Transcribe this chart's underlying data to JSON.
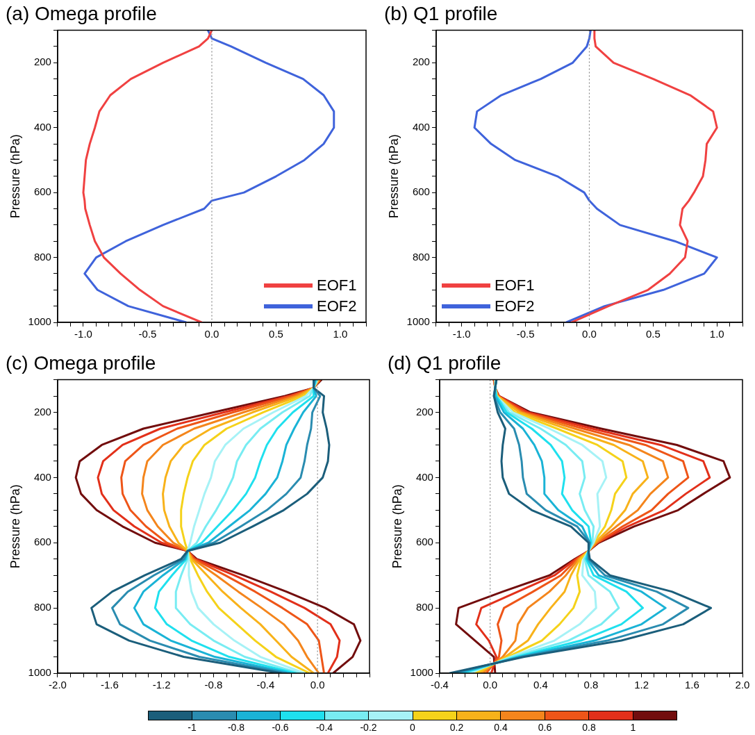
{
  "chart_data": [
    {
      "type": "line",
      "title": "(a) Omega profile",
      "ylabel": "Pressure (hPa)",
      "legend": "bottom right",
      "line_style": "solid",
      "marker": "none",
      "xlim": [
        -1.2,
        1.2
      ],
      "ylim": [
        1000,
        100
      ],
      "xticks": [
        {
          "value": -1.2,
          "label": null
        },
        {
          "value": -1.1,
          "label": null
        },
        {
          "value": -1,
          "label": "-1.0"
        },
        {
          "value": -0.9,
          "label": null
        },
        {
          "value": -0.8,
          "label": null
        },
        {
          "value": -0.7,
          "label": null
        },
        {
          "value": -0.6,
          "label": null
        },
        {
          "value": -0.5,
          "label": "-0.5"
        },
        {
          "value": -0.4,
          "label": null
        },
        {
          "value": -0.3,
          "label": null
        },
        {
          "value": -0.2,
          "label": null
        },
        {
          "value": -0.1,
          "label": null
        },
        {
          "value": 0,
          "label": "0.0"
        },
        {
          "value": 0.1,
          "label": null
        },
        {
          "value": 0.2,
          "label": null
        },
        {
          "value": 0.3,
          "label": null
        },
        {
          "value": 0.4,
          "label": null
        },
        {
          "value": 0.5,
          "label": "0.5"
        },
        {
          "value": 0.6,
          "label": null
        },
        {
          "value": 0.7,
          "label": null
        },
        {
          "value": 0.8,
          "label": null
        },
        {
          "value": 0.9,
          "label": null
        },
        {
          "value": 1,
          "label": "1.0"
        },
        {
          "value": 1.1,
          "label": null
        },
        {
          "value": 1.2,
          "label": null
        }
      ],
      "yticks": [
        {
          "value": 100,
          "label": null
        },
        {
          "value": 150,
          "label": null
        },
        200,
        {
          "value": 250,
          "label": null
        },
        {
          "value": 300,
          "label": null
        },
        {
          "value": 350,
          "label": null
        },
        400,
        {
          "value": 450,
          "label": null
        },
        {
          "value": 500,
          "label": null
        },
        {
          "value": 550,
          "label": null
        },
        600,
        {
          "value": 650,
          "label": null
        },
        {
          "value": 700,
          "label": null
        },
        {
          "value": 750,
          "label": null
        },
        800,
        {
          "value": 850,
          "label": null
        },
        {
          "value": 900,
          "label": null
        },
        {
          "value": 950,
          "label": null
        },
        1000
      ],
      "ref_lines": [
        {
          "axis": "x",
          "value": 0,
          "color": "#888888",
          "line_style": "dotted"
        }
      ],
      "series": [
        {
          "name": "EOF1",
          "color": "#f04141",
          "x": [
            0.0,
            -0.03,
            -0.1,
            -0.38,
            -0.63,
            -0.79,
            -0.875,
            -0.91,
            -0.95,
            -0.98,
            -0.99,
            -1.0,
            -0.99,
            -0.985,
            -0.95,
            -0.91,
            -0.84,
            -0.71,
            -0.56,
            -0.38,
            -0.08
          ],
          "values": [
            100,
            125,
            150,
            200,
            250,
            300,
            350,
            400,
            450,
            500,
            550,
            600,
            625,
            650,
            700,
            750,
            800,
            850,
            900,
            950,
            1000
          ]
        },
        {
          "name": "EOF2",
          "color": "#3f63db",
          "x": [
            -0.03,
            0.0,
            0.15,
            0.42,
            0.71,
            0.87,
            0.95,
            0.95,
            0.87,
            0.72,
            0.5,
            0.25,
            0.0,
            -0.06,
            -0.38,
            -0.67,
            -0.9,
            -0.99,
            -0.89,
            -0.65,
            -0.2
          ],
          "values": [
            100,
            125,
            150,
            200,
            250,
            300,
            350,
            400,
            450,
            500,
            550,
            600,
            625,
            650,
            700,
            750,
            800,
            850,
            900,
            950,
            1000
          ]
        }
      ]
    },
    {
      "type": "line",
      "title": "(b) Q1 profile",
      "ylabel": "Pressure (hPa)",
      "legend": "bottom left",
      "line_style": "solid",
      "marker": "none",
      "xlim": [
        -1.2,
        1.2
      ],
      "ylim": [
        1000,
        100
      ],
      "xticks": [
        {
          "value": -1.2,
          "label": null
        },
        {
          "value": -1.1,
          "label": null
        },
        {
          "value": -1,
          "label": "-1.0"
        },
        {
          "value": -0.9,
          "label": null
        },
        {
          "value": -0.8,
          "label": null
        },
        {
          "value": -0.7,
          "label": null
        },
        {
          "value": -0.6,
          "label": null
        },
        {
          "value": -0.5,
          "label": "-0.5"
        },
        {
          "value": -0.4,
          "label": null
        },
        {
          "value": -0.3,
          "label": null
        },
        {
          "value": -0.2,
          "label": null
        },
        {
          "value": -0.1,
          "label": null
        },
        {
          "value": 0,
          "label": "0.0"
        },
        {
          "value": 0.1,
          "label": null
        },
        {
          "value": 0.2,
          "label": null
        },
        {
          "value": 0.3,
          "label": null
        },
        {
          "value": 0.4,
          "label": null
        },
        {
          "value": 0.5,
          "label": "0.5"
        },
        {
          "value": 0.6,
          "label": null
        },
        {
          "value": 0.7,
          "label": null
        },
        {
          "value": 0.8,
          "label": null
        },
        {
          "value": 0.9,
          "label": null
        },
        {
          "value": 1,
          "label": "1.0"
        },
        {
          "value": 1.1,
          "label": null
        },
        {
          "value": 1.2,
          "label": null
        }
      ],
      "yticks": [
        {
          "value": 100,
          "label": null
        },
        {
          "value": 150,
          "label": null
        },
        200,
        {
          "value": 250,
          "label": null
        },
        {
          "value": 300,
          "label": null
        },
        {
          "value": 350,
          "label": null
        },
        400,
        {
          "value": 450,
          "label": null
        },
        {
          "value": 500,
          "label": null
        },
        {
          "value": 550,
          "label": null
        },
        600,
        {
          "value": 650,
          "label": null
        },
        {
          "value": 700,
          "label": null
        },
        {
          "value": 750,
          "label": null
        },
        800,
        {
          "value": 850,
          "label": null
        },
        {
          "value": 900,
          "label": null
        },
        {
          "value": 950,
          "label": null
        },
        1000
      ],
      "ref_lines": [
        {
          "axis": "x",
          "value": 0,
          "color": "#888888",
          "line_style": "dotted"
        }
      ],
      "series": [
        {
          "name": "EOF1",
          "color": "#f04141",
          "x": [
            0.04,
            0.04,
            0.05,
            0.19,
            0.5,
            0.79,
            0.97,
            1.0,
            0.92,
            0.91,
            0.89,
            0.82,
            0.78,
            0.73,
            0.71,
            0.77,
            0.75,
            0.63,
            0.46,
            0.15,
            -0.14
          ],
          "values": [
            100,
            125,
            150,
            200,
            250,
            300,
            350,
            400,
            450,
            500,
            550,
            600,
            625,
            650,
            700,
            750,
            800,
            850,
            900,
            950,
            1000
          ]
        },
        {
          "name": "EOF2",
          "color": "#3f63db",
          "x": [
            0.01,
            0.0,
            -0.02,
            -0.13,
            -0.38,
            -0.69,
            -0.88,
            -0.9,
            -0.77,
            -0.58,
            -0.25,
            -0.04,
            0.0,
            0.06,
            0.24,
            0.67,
            1.0,
            0.9,
            0.58,
            0.12,
            -0.18
          ],
          "values": [
            100,
            125,
            150,
            200,
            250,
            300,
            350,
            400,
            450,
            500,
            550,
            600,
            625,
            650,
            700,
            750,
            800,
            850,
            900,
            950,
            1000
          ]
        }
      ]
    },
    {
      "type": "line",
      "title": "(c) Omega profile",
      "ylabel": "Pressure (hPa)",
      "line_style": "solid",
      "marker": "none",
      "xlim": [
        -2.0,
        0.4
      ],
      "ylim": [
        1000,
        100
      ],
      "xticks": [
        {
          "value": -2,
          "label": "-2.0"
        },
        {
          "value": -1.9,
          "label": null
        },
        {
          "value": -1.8,
          "label": null
        },
        {
          "value": -1.7,
          "label": null
        },
        {
          "value": -1.6,
          "label": "-1.6"
        },
        {
          "value": -1.5,
          "label": null
        },
        {
          "value": -1.4,
          "label": null
        },
        {
          "value": -1.3,
          "label": null
        },
        {
          "value": -1.2,
          "label": "-1.2"
        },
        {
          "value": -1.1,
          "label": null
        },
        {
          "value": -1,
          "label": null
        },
        {
          "value": -0.9,
          "label": null
        },
        {
          "value": -0.8,
          "label": "-0.8"
        },
        {
          "value": -0.7,
          "label": null
        },
        {
          "value": -0.6,
          "label": null
        },
        {
          "value": -0.5,
          "label": null
        },
        {
          "value": -0.4,
          "label": "-0.4"
        },
        {
          "value": -0.3,
          "label": null
        },
        {
          "value": -0.2,
          "label": null
        },
        {
          "value": -0.1,
          "label": null
        },
        {
          "value": 0,
          "label": "0.0"
        },
        {
          "value": 0.1,
          "label": null
        },
        {
          "value": 0.2,
          "label": null
        },
        {
          "value": 0.3,
          "label": null
        },
        {
          "value": 0.4,
          "label": null
        }
      ],
      "yticks": [
        {
          "value": 100,
          "label": null
        },
        {
          "value": 150,
          "label": null
        },
        200,
        {
          "value": 250,
          "label": null
        },
        {
          "value": 300,
          "label": null
        },
        {
          "value": 350,
          "label": null
        },
        400,
        {
          "value": 450,
          "label": null
        },
        {
          "value": 500,
          "label": null
        },
        {
          "value": 550,
          "label": null
        },
        600,
        {
          "value": 650,
          "label": null
        },
        {
          "value": 700,
          "label": null
        },
        {
          "value": 750,
          "label": null
        },
        800,
        {
          "value": 850,
          "label": null
        },
        {
          "value": 900,
          "label": null
        },
        {
          "value": 950,
          "label": null
        },
        1000
      ],
      "ref_lines": [
        {
          "axis": "x",
          "value": 0,
          "color": "#888888",
          "line_style": "dotted"
        }
      ],
      "colors": [
        "#1b5e7b",
        "#2a8cb0",
        "#1ab3d6",
        "#1fe0ee",
        "#78ecf2",
        "#a6f2f6",
        "#f5d21a",
        "#f8b21a",
        "#f4851c",
        "#ee5518",
        "#e2301a",
        "#720d0d"
      ],
      "series": [
        {
          "x": [
            -0.03,
            -0.03,
            0.05,
            0.04,
            0.07,
            0.09,
            0.08,
            0.04,
            -0.08,
            -0.26,
            -0.5,
            -0.75,
            -1.0,
            -1.05,
            -1.33,
            -1.58,
            -1.74,
            -1.7,
            -1.45,
            -1.03,
            -0.28
          ],
          "values": [
            100,
            125,
            150,
            200,
            250,
            300,
            350,
            400,
            450,
            500,
            550,
            600,
            625,
            650,
            700,
            750,
            800,
            850,
            900,
            950,
            1000
          ]
        },
        {
          "x": [
            -0.02,
            -0.03,
            0.02,
            -0.04,
            -0.05,
            -0.08,
            -0.1,
            -0.13,
            -0.24,
            -0.39,
            -0.59,
            -0.8,
            -1.0,
            -1.03,
            -1.26,
            -1.46,
            -1.58,
            -1.52,
            -1.29,
            -0.91,
            -0.24
          ],
          "values": [
            100,
            125,
            150,
            200,
            250,
            300,
            350,
            400,
            450,
            500,
            550,
            600,
            625,
            650,
            700,
            750,
            800,
            850,
            900,
            950,
            1000
          ]
        },
        {
          "x": [
            -0.02,
            -0.03,
            -0.01,
            -0.11,
            -0.18,
            -0.24,
            -0.27,
            -0.31,
            -0.4,
            -0.52,
            -0.68,
            -0.84,
            -1.0,
            -1.02,
            -1.19,
            -1.34,
            -1.41,
            -1.34,
            -1.13,
            -0.79,
            -0.21
          ],
          "values": [
            100,
            125,
            150,
            200,
            250,
            300,
            350,
            400,
            450,
            500,
            550,
            600,
            625,
            650,
            700,
            750,
            800,
            850,
            900,
            950,
            1000
          ]
        },
        {
          "x": [
            -0.01,
            -0.03,
            -0.03,
            -0.19,
            -0.31,
            -0.39,
            -0.44,
            -0.48,
            -0.55,
            -0.65,
            -0.77,
            -0.89,
            -1.0,
            -1.01,
            -1.12,
            -1.22,
            -1.25,
            -1.16,
            -0.97,
            -0.68,
            -0.17
          ],
          "values": [
            100,
            125,
            150,
            200,
            250,
            300,
            350,
            400,
            450,
            500,
            550,
            600,
            625,
            650,
            700,
            750,
            800,
            850,
            900,
            950,
            1000
          ]
        },
        {
          "x": [
            -0.01,
            -0.03,
            -0.06,
            -0.27,
            -0.44,
            -0.55,
            -0.62,
            -0.65,
            -0.71,
            -0.78,
            -0.86,
            -0.93,
            -1.0,
            -1.0,
            -1.05,
            -1.09,
            -1.09,
            -0.98,
            -0.8,
            -0.56,
            -0.14
          ],
          "values": [
            100,
            125,
            150,
            200,
            250,
            300,
            350,
            400,
            450,
            500,
            550,
            600,
            625,
            650,
            700,
            750,
            800,
            850,
            900,
            950,
            1000
          ]
        },
        {
          "x": [
            0.0,
            -0.03,
            -0.09,
            -0.34,
            -0.57,
            -0.71,
            -0.79,
            -0.82,
            -0.87,
            -0.91,
            -0.95,
            -0.98,
            -1.0,
            -0.99,
            -0.99,
            -0.97,
            -0.92,
            -0.8,
            -0.64,
            -0.44,
            -0.1
          ],
          "values": [
            100,
            125,
            150,
            200,
            250,
            300,
            350,
            400,
            450,
            500,
            550,
            600,
            625,
            650,
            700,
            750,
            800,
            850,
            900,
            950,
            1000
          ]
        },
        {
          "x": [
            0.0,
            -0.03,
            -0.11,
            -0.42,
            -0.7,
            -0.87,
            -0.96,
            -1.0,
            -1.03,
            -1.05,
            -1.05,
            -1.02,
            -1.0,
            -0.98,
            -0.92,
            -0.85,
            -0.76,
            -0.62,
            -0.48,
            -0.32,
            -0.06
          ],
          "values": [
            100,
            125,
            150,
            200,
            250,
            300,
            350,
            400,
            450,
            500,
            550,
            600,
            625,
            650,
            700,
            750,
            800,
            850,
            900,
            950,
            1000
          ]
        },
        {
          "x": [
            0.01,
            -0.03,
            -0.14,
            -0.5,
            -0.82,
            -1.03,
            -1.13,
            -1.17,
            -1.19,
            -1.18,
            -1.14,
            -1.07,
            -1.0,
            -0.97,
            -0.85,
            -0.73,
            -0.59,
            -0.44,
            -0.32,
            -0.2,
            -0.03
          ],
          "values": [
            100,
            125,
            150,
            200,
            250,
            300,
            350,
            400,
            450,
            500,
            550,
            600,
            625,
            650,
            700,
            750,
            800,
            850,
            900,
            950,
            1000
          ]
        },
        {
          "x": [
            0.01,
            -0.03,
            -0.17,
            -0.57,
            -0.95,
            -1.19,
            -1.31,
            -1.34,
            -1.35,
            -1.31,
            -1.23,
            -1.11,
            -1.0,
            -0.96,
            -0.78,
            -0.61,
            -0.43,
            -0.26,
            -0.15,
            -0.08,
            0.01
          ],
          "values": [
            100,
            125,
            150,
            200,
            250,
            300,
            350,
            400,
            450,
            500,
            550,
            600,
            625,
            650,
            700,
            750,
            800,
            850,
            900,
            950,
            1000
          ]
        },
        {
          "x": [
            0.02,
            -0.03,
            -0.2,
            -0.65,
            -1.08,
            -1.34,
            -1.48,
            -1.51,
            -1.5,
            -1.44,
            -1.32,
            -1.16,
            -1.0,
            -0.95,
            -0.71,
            -0.48,
            -0.27,
            -0.08,
            0.01,
            0.03,
            0.05
          ],
          "values": [
            100,
            125,
            150,
            200,
            250,
            300,
            350,
            400,
            450,
            500,
            550,
            600,
            625,
            650,
            700,
            750,
            800,
            850,
            900,
            950,
            1000
          ]
        },
        {
          "x": [
            0.02,
            -0.03,
            -0.22,
            -0.72,
            -1.21,
            -1.5,
            -1.65,
            -1.69,
            -1.66,
            -1.57,
            -1.41,
            -1.2,
            -1.0,
            -0.94,
            -0.64,
            -0.36,
            -0.1,
            0.1,
            0.17,
            0.15,
            0.08
          ],
          "values": [
            100,
            125,
            150,
            200,
            250,
            300,
            350,
            400,
            450,
            500,
            550,
            600,
            625,
            650,
            700,
            750,
            800,
            850,
            900,
            950,
            1000
          ]
        },
        {
          "x": [
            0.03,
            -0.03,
            -0.25,
            -0.8,
            -1.34,
            -1.66,
            -1.83,
            -1.86,
            -1.82,
            -1.7,
            -1.5,
            -1.25,
            -1.0,
            -0.93,
            -0.57,
            -0.24,
            0.06,
            0.28,
            0.33,
            0.27,
            0.12
          ],
          "values": [
            100,
            125,
            150,
            200,
            250,
            300,
            350,
            400,
            450,
            500,
            550,
            600,
            625,
            650,
            700,
            750,
            800,
            850,
            900,
            950,
            1000
          ]
        }
      ]
    },
    {
      "type": "line",
      "title": "(d) Q1 profile",
      "ylabel": "Pressure (hPa)",
      "line_style": "solid",
      "marker": "none",
      "xlim": [
        -0.4,
        2.0
      ],
      "ylim": [
        1000,
        100
      ],
      "xticks": [
        {
          "value": -0.4,
          "label": "-0.4"
        },
        {
          "value": -0.3,
          "label": null
        },
        {
          "value": -0.2,
          "label": null
        },
        {
          "value": -0.1,
          "label": null
        },
        {
          "value": 0,
          "label": "0.0"
        },
        {
          "value": 0.1,
          "label": null
        },
        {
          "value": 0.2,
          "label": null
        },
        {
          "value": 0.3,
          "label": null
        },
        {
          "value": 0.4,
          "label": "0.4"
        },
        {
          "value": 0.5,
          "label": null
        },
        {
          "value": 0.6,
          "label": null
        },
        {
          "value": 0.7,
          "label": null
        },
        {
          "value": 0.8,
          "label": "0.8"
        },
        {
          "value": 0.9,
          "label": null
        },
        {
          "value": 1,
          "label": null
        },
        {
          "value": 1.1,
          "label": null
        },
        {
          "value": 1.2,
          "label": "1.2"
        },
        {
          "value": 1.3,
          "label": null
        },
        {
          "value": 1.4,
          "label": null
        },
        {
          "value": 1.5,
          "label": null
        },
        {
          "value": 1.6,
          "label": "1.6"
        },
        {
          "value": 1.7,
          "label": null
        },
        {
          "value": 1.8,
          "label": null
        },
        {
          "value": 1.9,
          "label": null
        },
        {
          "value": 2,
          "label": "2.0"
        }
      ],
      "yticks": [
        {
          "value": 100,
          "label": null
        },
        {
          "value": 150,
          "label": null
        },
        200,
        {
          "value": 250,
          "label": null
        },
        {
          "value": 300,
          "label": null
        },
        {
          "value": 350,
          "label": null
        },
        400,
        {
          "value": 450,
          "label": null
        },
        {
          "value": 500,
          "label": null
        },
        {
          "value": 550,
          "label": null
        },
        600,
        {
          "value": 650,
          "label": null
        },
        {
          "value": 700,
          "label": null
        },
        {
          "value": 750,
          "label": null
        },
        800,
        {
          "value": 850,
          "label": null
        },
        {
          "value": 900,
          "label": null
        },
        {
          "value": 950,
          "label": null
        },
        1000
      ],
      "ref_lines": [
        {
          "axis": "x",
          "value": 0,
          "color": "#888888",
          "line_style": "dotted"
        }
      ],
      "colors": [
        "#1b5e7b",
        "#2a8cb0",
        "#1ab3d6",
        "#1fe0ee",
        "#78ecf2",
        "#a6f2f6",
        "#f5d21a",
        "#f8b21a",
        "#f4851c",
        "#ee5518",
        "#e2301a",
        "#720d0d"
      ],
      "clim": [
        -1.2,
        1.2
      ],
      "cticks": [
        -1,
        -0.8,
        -0.6,
        -0.4,
        -0.2,
        0,
        0.2,
        0.4,
        0.6,
        0.8,
        1
      ],
      "series": [
        {
          "x": [
            0.05,
            0.04,
            0.03,
            0.06,
            0.12,
            0.1,
            0.09,
            0.1,
            0.15,
            0.33,
            0.64,
            0.78,
            0.78,
            0.79,
            0.95,
            1.44,
            1.75,
            1.53,
            1.04,
            0.27,
            -0.32
          ],
          "values": [
            100,
            125,
            150,
            200,
            250,
            300,
            350,
            400,
            450,
            500,
            550,
            600,
            625,
            650,
            700,
            750,
            800,
            850,
            900,
            950,
            1000
          ]
        },
        {
          "x": [
            0.05,
            0.04,
            0.03,
            0.08,
            0.19,
            0.23,
            0.25,
            0.26,
            0.29,
            0.44,
            0.69,
            0.79,
            0.78,
            0.78,
            0.91,
            1.32,
            1.57,
            1.37,
            0.93,
            0.25,
            -0.29
          ],
          "values": [
            100,
            125,
            150,
            200,
            250,
            300,
            350,
            400,
            450,
            500,
            550,
            600,
            625,
            650,
            700,
            750,
            800,
            850,
            900,
            950,
            1000
          ]
        },
        {
          "x": [
            0.05,
            0.04,
            0.04,
            0.11,
            0.26,
            0.35,
            0.41,
            0.43,
            0.43,
            0.54,
            0.73,
            0.79,
            0.78,
            0.77,
            0.86,
            1.2,
            1.39,
            1.2,
            0.83,
            0.23,
            -0.25
          ],
          "values": [
            100,
            125,
            150,
            200,
            250,
            300,
            350,
            400,
            450,
            500,
            550,
            600,
            625,
            650,
            700,
            750,
            800,
            850,
            900,
            950,
            1000
          ]
        },
        {
          "x": [
            0.05,
            0.04,
            0.05,
            0.13,
            0.33,
            0.48,
            0.57,
            0.59,
            0.57,
            0.65,
            0.78,
            0.8,
            0.78,
            0.76,
            0.82,
            1.08,
            1.21,
            1.04,
            0.72,
            0.21,
            -0.22
          ],
          "values": [
            100,
            125,
            150,
            200,
            250,
            300,
            350,
            400,
            450,
            500,
            550,
            600,
            625,
            650,
            700,
            750,
            800,
            850,
            900,
            950,
            1000
          ]
        },
        {
          "x": [
            0.05,
            0.04,
            0.05,
            0.15,
            0.4,
            0.6,
            0.73,
            0.75,
            0.71,
            0.75,
            0.82,
            0.81,
            0.78,
            0.75,
            0.78,
            0.95,
            1.02,
            0.88,
            0.62,
            0.18,
            -0.19
          ],
          "values": [
            100,
            125,
            150,
            200,
            250,
            300,
            350,
            400,
            450,
            500,
            550,
            600,
            625,
            650,
            700,
            750,
            800,
            850,
            900,
            950,
            1000
          ]
        },
        {
          "x": [
            0.04,
            0.04,
            0.05,
            0.18,
            0.47,
            0.73,
            0.89,
            0.92,
            0.85,
            0.86,
            0.87,
            0.82,
            0.78,
            0.74,
            0.73,
            0.83,
            0.84,
            0.71,
            0.51,
            0.16,
            -0.16
          ],
          "values": [
            100,
            125,
            150,
            200,
            250,
            300,
            350,
            400,
            450,
            500,
            550,
            600,
            625,
            650,
            700,
            750,
            800,
            850,
            900,
            950,
            1000
          ]
        },
        {
          "x": [
            0.04,
            0.04,
            0.05,
            0.2,
            0.53,
            0.85,
            1.05,
            1.08,
            0.99,
            0.96,
            0.91,
            0.82,
            0.78,
            0.72,
            0.69,
            0.71,
            0.66,
            0.55,
            0.41,
            0.14,
            -0.12
          ],
          "values": [
            100,
            125,
            150,
            200,
            250,
            300,
            350,
            400,
            450,
            500,
            550,
            600,
            625,
            650,
            700,
            750,
            800,
            850,
            900,
            950,
            1000
          ]
        },
        {
          "x": [
            0.04,
            0.04,
            0.06,
            0.23,
            0.6,
            0.98,
            1.21,
            1.25,
            1.13,
            1.07,
            0.96,
            0.83,
            0.78,
            0.71,
            0.64,
            0.59,
            0.48,
            0.38,
            0.3,
            0.12,
            -0.09
          ],
          "values": [
            100,
            125,
            150,
            200,
            250,
            300,
            350,
            400,
            450,
            500,
            550,
            600,
            625,
            650,
            700,
            750,
            800,
            850,
            900,
            950,
            1000
          ]
        },
        {
          "x": [
            0.04,
            0.04,
            0.06,
            0.25,
            0.67,
            1.1,
            1.37,
            1.41,
            1.27,
            1.17,
            1.0,
            0.84,
            0.78,
            0.7,
            0.6,
            0.47,
            0.3,
            0.22,
            0.2,
            0.1,
            -0.06
          ],
          "values": [
            100,
            125,
            150,
            200,
            250,
            300,
            350,
            400,
            450,
            500,
            550,
            600,
            625,
            650,
            700,
            750,
            800,
            850,
            900,
            950,
            1000
          ]
        },
        {
          "x": [
            0.03,
            0.04,
            0.06,
            0.27,
            0.74,
            1.23,
            1.53,
            1.57,
            1.41,
            1.28,
            1.05,
            0.85,
            0.78,
            0.69,
            0.56,
            0.34,
            0.11,
            0.06,
            0.09,
            0.07,
            -0.03
          ],
          "values": [
            100,
            125,
            150,
            200,
            250,
            300,
            350,
            400,
            450,
            500,
            550,
            600,
            625,
            650,
            700,
            750,
            800,
            850,
            900,
            950,
            1000
          ]
        },
        {
          "x": [
            0.03,
            0.04,
            0.07,
            0.3,
            0.81,
            1.35,
            1.69,
            1.74,
            1.55,
            1.38,
            1.09,
            0.85,
            0.78,
            0.68,
            0.51,
            0.22,
            -0.07,
            -0.11,
            -0.01,
            0.05,
            0.01
          ],
          "values": [
            100,
            125,
            150,
            200,
            250,
            300,
            350,
            400,
            450,
            500,
            550,
            600,
            625,
            650,
            700,
            750,
            800,
            850,
            900,
            950,
            1000
          ]
        },
        {
          "x": [
            0.03,
            0.04,
            0.07,
            0.32,
            0.88,
            1.48,
            1.85,
            1.9,
            1.69,
            1.49,
            1.14,
            0.86,
            0.78,
            0.67,
            0.47,
            0.1,
            -0.25,
            -0.27,
            -0.12,
            0.03,
            0.04
          ],
          "values": [
            100,
            125,
            150,
            200,
            250,
            300,
            350,
            400,
            450,
            500,
            550,
            600,
            625,
            650,
            700,
            750,
            800,
            850,
            900,
            950,
            1000
          ]
        }
      ]
    }
  ]
}
